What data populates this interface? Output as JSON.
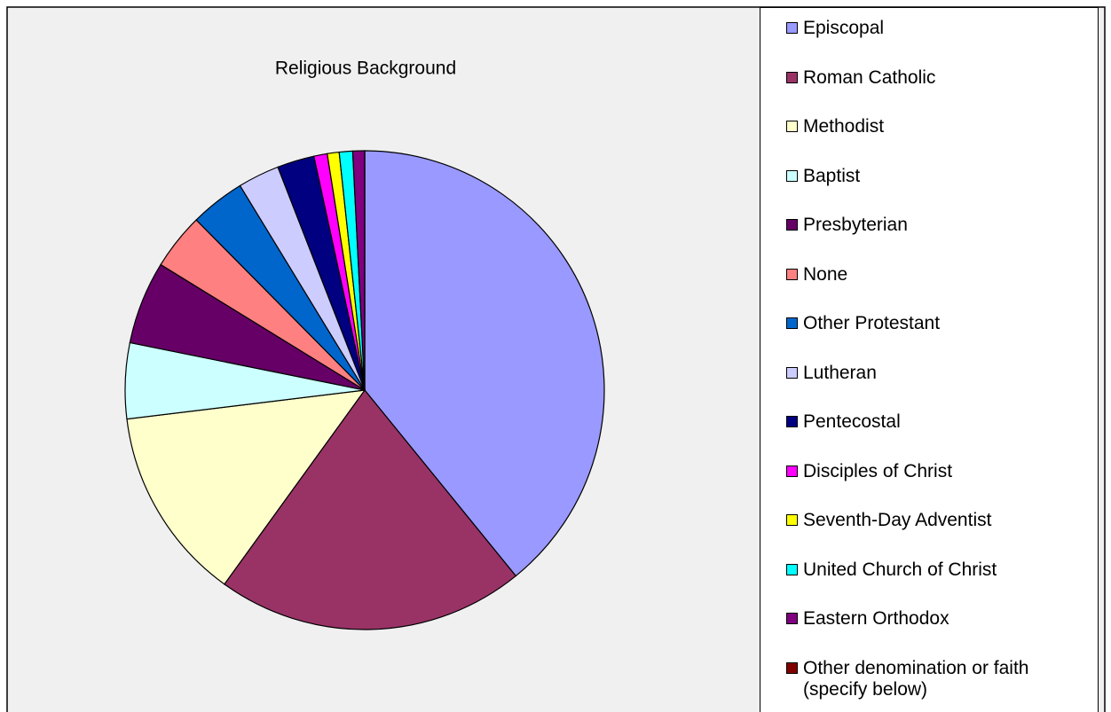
{
  "chart_data": {
    "type": "pie",
    "title": "Religious Background",
    "categories": [
      "Episcopal",
      "Roman Catholic",
      "Methodist",
      "Baptist",
      "Presbyterian",
      "None",
      "Other Protestant",
      "Lutheran",
      "Pentecostal",
      "Disciples of Christ",
      "Seventh-Day Adventist",
      "United Church of Christ",
      "Eastern Orthodox",
      "Other denomination or faith (specify below)"
    ],
    "values": [
      39.1,
      20.8,
      13.1,
      5.1,
      5.6,
      3.8,
      3.7,
      2.8,
      2.5,
      0.9,
      0.8,
      0.9,
      0.8,
      0
    ],
    "colors": [
      "#9999FF",
      "#993366",
      "#FFFFCC",
      "#CCFFFF",
      "#660066",
      "#FF8080",
      "#0066CC",
      "#CCCCFF",
      "#000080",
      "#FF00FF",
      "#FFFF00",
      "#00FFFF",
      "#800080",
      "#800000"
    ],
    "legend": "right"
  }
}
